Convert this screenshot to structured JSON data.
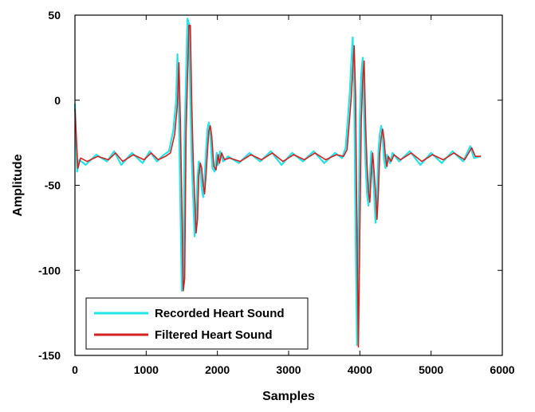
{
  "chart_data": {
    "type": "line",
    "title": "",
    "xlabel": "Samples",
    "ylabel": "Amplitude",
    "xlim": [
      0,
      6000
    ],
    "ylim": [
      -150,
      50
    ],
    "xticks": [
      0,
      1000,
      2000,
      3000,
      4000,
      5000,
      6000
    ],
    "yticks": [
      50,
      0,
      -50,
      -100,
      -150
    ],
    "grid": false,
    "legend_position": "bottom-left",
    "series": [
      {
        "name": "Recorded Heart Sound",
        "color": "#22e5ea",
        "x": [
          0,
          30,
          60,
          150,
          300,
          450,
          550,
          650,
          800,
          950,
          1050,
          1150,
          1250,
          1320,
          1380,
          1420,
          1440,
          1460,
          1480,
          1500,
          1520,
          1540,
          1560,
          1580,
          1600,
          1620,
          1640,
          1660,
          1680,
          1700,
          1720,
          1740,
          1760,
          1780,
          1800,
          1820,
          1840,
          1860,
          1880,
          1900,
          1930,
          1960,
          1990,
          2010,
          2040,
          2080,
          2150,
          2300,
          2450,
          2600,
          2750,
          2900,
          3050,
          3200,
          3350,
          3500,
          3650,
          3750,
          3800,
          3830,
          3860,
          3880,
          3900,
          3920,
          3940,
          3960,
          3980,
          4000,
          4020,
          4040,
          4060,
          4080,
          4100,
          4120,
          4140,
          4160,
          4180,
          4200,
          4220,
          4240,
          4260,
          4280,
          4300,
          4320,
          4340,
          4360,
          4380,
          4420,
          4460,
          4550,
          4700,
          4850,
          5000,
          5150,
          5300,
          5450,
          5550,
          5600,
          5700
        ],
        "y": [
          -2,
          -42,
          -35,
          -38,
          -32,
          -36,
          -30,
          -38,
          -31,
          -37,
          -30,
          -36,
          -32,
          -30,
          -18,
          0,
          27,
          -10,
          -60,
          -112,
          -110,
          -20,
          15,
          48,
          45,
          0,
          -35,
          -58,
          -80,
          -72,
          -45,
          -36,
          -40,
          -52,
          -57,
          -45,
          -30,
          -17,
          -13,
          -20,
          -40,
          -42,
          -31,
          -38,
          -30,
          -36,
          -33,
          -37,
          -31,
          -36,
          -30,
          -38,
          -31,
          -36,
          -30,
          -37,
          -31,
          -34,
          -28,
          -12,
          5,
          22,
          37,
          5,
          -80,
          -144,
          -80,
          -10,
          15,
          25,
          -12,
          -38,
          -55,
          -62,
          -45,
          -30,
          -42,
          -55,
          -72,
          -55,
          -30,
          -20,
          -15,
          -22,
          -35,
          -40,
          -32,
          -37,
          -31,
          -36,
          -30,
          -38,
          -31,
          -37,
          -30,
          -36,
          -27,
          -34,
          -33
        ]
      },
      {
        "name": "Filtered Heart Sound",
        "color": "#d62020",
        "x": [
          0,
          40,
          80,
          170,
          320,
          470,
          570,
          670,
          820,
          970,
          1070,
          1170,
          1270,
          1340,
          1400,
          1440,
          1460,
          1480,
          1500,
          1520,
          1540,
          1560,
          1580,
          1600,
          1620,
          1640,
          1660,
          1680,
          1700,
          1720,
          1740,
          1760,
          1780,
          1800,
          1820,
          1840,
          1860,
          1880,
          1900,
          1920,
          1950,
          1980,
          2010,
          2030,
          2060,
          2100,
          2170,
          2320,
          2470,
          2620,
          2770,
          2920,
          3070,
          3220,
          3370,
          3520,
          3670,
          3770,
          3820,
          3850,
          3880,
          3900,
          3920,
          3940,
          3960,
          3980,
          4000,
          4020,
          4040,
          4060,
          4080,
          4100,
          4120,
          4140,
          4160,
          4180,
          4200,
          4220,
          4240,
          4260,
          4280,
          4300,
          4320,
          4340,
          4360,
          4380,
          4400,
          4440,
          4480,
          4570,
          4720,
          4870,
          5020,
          5170,
          5320,
          5470,
          5570,
          5620,
          5700
        ],
        "y": [
          -5,
          -40,
          -34,
          -36,
          -33,
          -35,
          -31,
          -36,
          -32,
          -35,
          -31,
          -35,
          -33,
          -31,
          -20,
          -2,
          22,
          -12,
          -58,
          -112,
          -105,
          -18,
          12,
          44,
          44,
          -2,
          -35,
          -56,
          -78,
          -70,
          -44,
          -37,
          -40,
          -50,
          -55,
          -44,
          -30,
          -18,
          -15,
          -21,
          -39,
          -41,
          -32,
          -37,
          -31,
          -35,
          -34,
          -36,
          -32,
          -35,
          -31,
          -36,
          -32,
          -35,
          -31,
          -35,
          -32,
          -33,
          -29,
          -14,
          2,
          18,
          32,
          2,
          -82,
          -145,
          -78,
          -12,
          12,
          23,
          -14,
          -38,
          -54,
          -60,
          -44,
          -31,
          -42,
          -54,
          -70,
          -54,
          -31,
          -22,
          -17,
          -23,
          -34,
          -39,
          -33,
          -36,
          -32,
          -35,
          -31,
          -36,
          -32,
          -35,
          -31,
          -35,
          -28,
          -33,
          -33
        ]
      }
    ]
  }
}
